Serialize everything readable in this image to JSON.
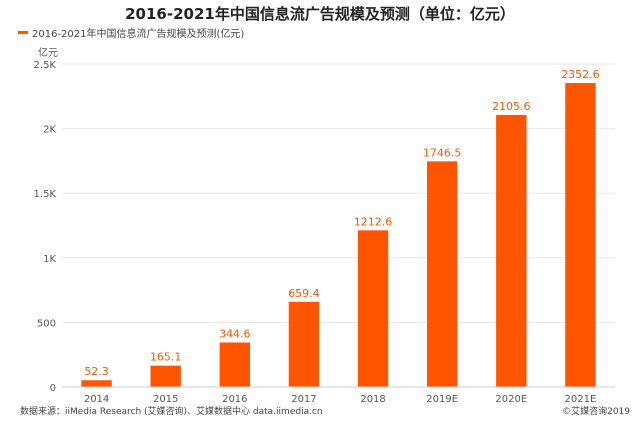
{
  "title": "2016-2021年中国信息流广告规模及预测（单位：亿元）",
  "footer": {
    "source": "数据来源：iiMedia Research (艾媒咨询)、艾媒数据中心 data.iimedia.cn",
    "copyright": "©艾媒咨询2019"
  },
  "colors": {
    "bar": "#ff5500",
    "label": "#ff5500",
    "grid": "#e6e6e6",
    "axis_text": "#555555"
  },
  "chart_data": {
    "type": "bar",
    "title": "2016-2021年中国信息流广告规模及预测（单位：亿元）",
    "ylabel": "亿元",
    "xlabel": "",
    "categories": [
      "2014",
      "2015",
      "2016",
      "2017",
      "2018",
      "2019E",
      "2020E",
      "2021E"
    ],
    "series": [
      {
        "name": "2016-2021年中国信息流广告规模及预测(亿元)",
        "values": [
          52.3,
          165.1,
          344.6,
          659.4,
          1212.6,
          1746.5,
          2105.6,
          2352.6
        ],
        "labels": [
          "52.3",
          "165.1",
          "344.6",
          "659.4",
          "1212.6",
          "1746.5",
          "2105.6",
          "2352.6"
        ]
      }
    ],
    "ylim": [
      0,
      2500
    ],
    "yticks": [
      0,
      500,
      1000,
      1500,
      2000,
      2500
    ],
    "ytick_labels": [
      "0",
      "500",
      "1K",
      "1.5K",
      "2K",
      "2.5K"
    ],
    "grid": true,
    "legend_position": "top-left"
  }
}
